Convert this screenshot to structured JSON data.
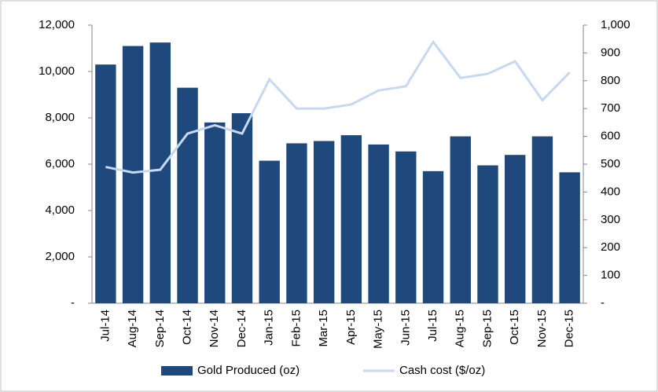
{
  "chart_data": {
    "type": "bar-line",
    "categories": [
      "Jul-14",
      "Aug-14",
      "Sep-14",
      "Oct-14",
      "Nov-14",
      "Dec-14",
      "Jan-15",
      "Feb-15",
      "Mar-15",
      "Apr-15",
      "May-15",
      "Jun-15",
      "Jul-15",
      "Aug-15",
      "Sep-15",
      "Oct-15",
      "Nov-15",
      "Dec-15"
    ],
    "series": [
      {
        "name": "Gold Produced (oz)",
        "type": "bar",
        "color": "#1f497d",
        "values": [
          10300,
          11100,
          11250,
          9300,
          7800,
          8200,
          6150,
          6900,
          7000,
          7250,
          6850,
          6550,
          5700,
          7200,
          5950,
          6400,
          7200,
          5650
        ]
      },
      {
        "name": "Cash cost ($/oz)",
        "type": "line",
        "axis": "y2",
        "color": "#c6d9f1",
        "values": [
          490,
          470,
          480,
          610,
          640,
          610,
          805,
          700,
          700,
          715,
          765,
          780,
          940,
          810,
          825,
          870,
          730,
          830
        ]
      }
    ],
    "ylim": [
      0,
      12000
    ],
    "yticks": [
      {
        "value": 0,
        "label": "-"
      },
      {
        "value": 2000,
        "label": "2,000"
      },
      {
        "value": 4000,
        "label": "4,000"
      },
      {
        "value": 6000,
        "label": "6,000"
      },
      {
        "value": 8000,
        "label": "8,000"
      },
      {
        "value": 10000,
        "label": "10,000"
      },
      {
        "value": 12000,
        "label": "12,000"
      }
    ],
    "y2lim": [
      0,
      1000
    ],
    "y2ticks": [
      {
        "value": 0,
        "label": "-"
      },
      100,
      200,
      300,
      400,
      500,
      600,
      700,
      800,
      900,
      {
        "value": 1000,
        "label": "1,000"
      }
    ],
    "legend": "bottom"
  }
}
